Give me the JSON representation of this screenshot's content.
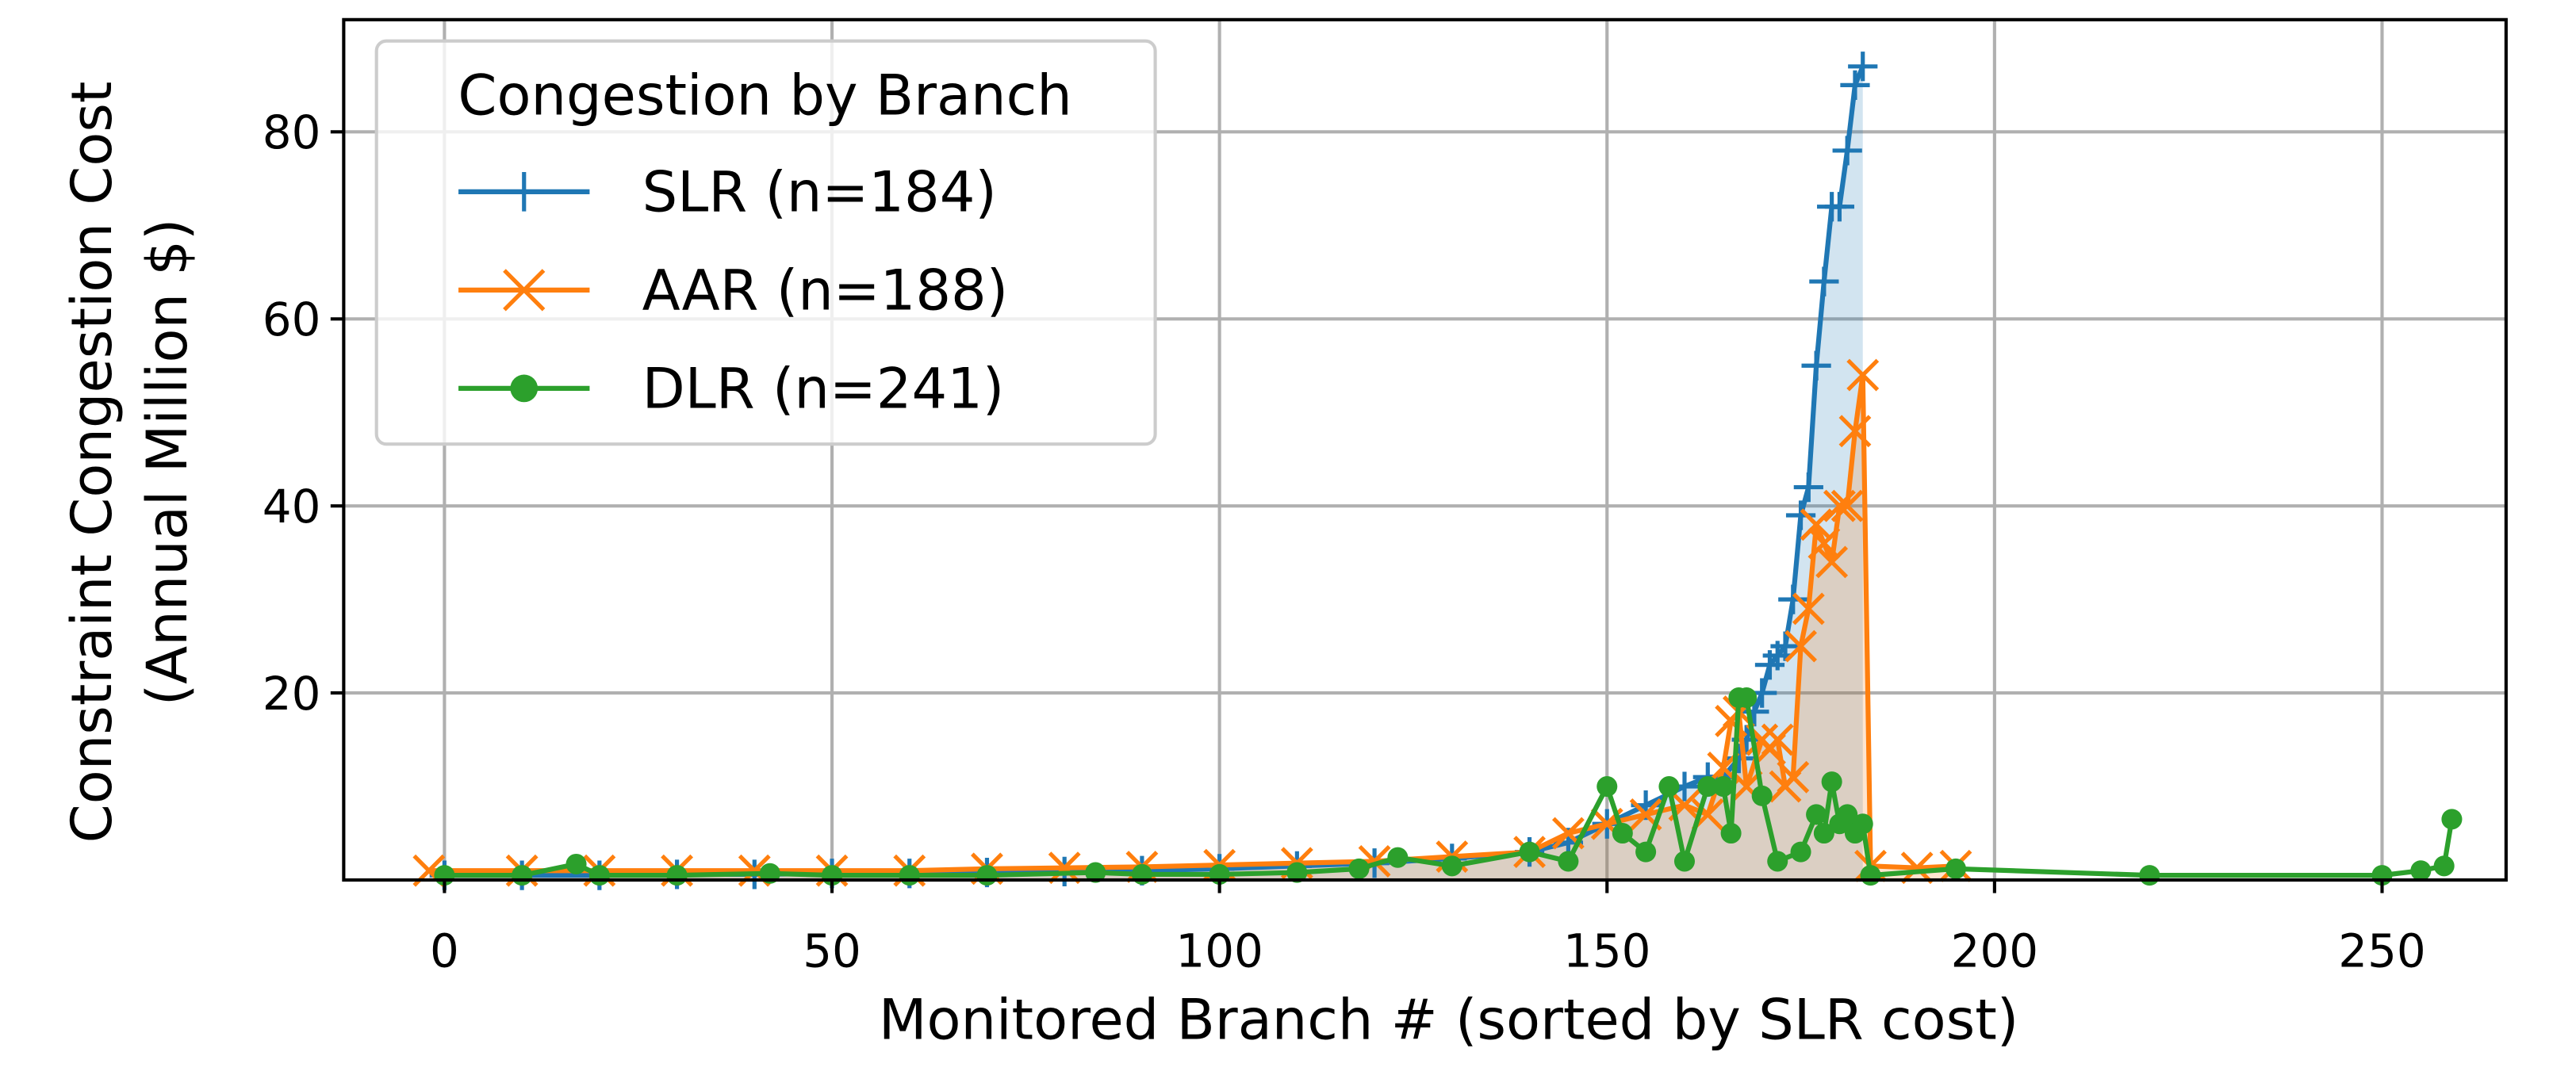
{
  "chart_data": {
    "type": "line",
    "xlabel": "Monitored Branch # (sorted by SLR cost)",
    "ylabel": [
      "Constraint Congestion Cost",
      "(Annual Million $)"
    ],
    "legend_title": "Congestion by Branch",
    "legend_position": "upper left",
    "grid": true,
    "xlim": [
      -13,
      266
    ],
    "ylim": [
      0,
      92
    ],
    "xticks": [
      0,
      50,
      100,
      150,
      200,
      250
    ],
    "yticks": [
      20,
      40,
      60,
      80
    ],
    "series": [
      {
        "name": "SLR (n=184)",
        "color": "#1f77b4",
        "marker": "plus",
        "fill": true,
        "x": [
          0,
          10,
          20,
          30,
          40,
          50,
          60,
          70,
          80,
          90,
          100,
          110,
          120,
          130,
          140,
          145,
          150,
          155,
          160,
          163,
          165,
          167,
          168,
          169,
          170,
          171,
          172,
          173,
          174,
          175,
          176,
          177,
          178,
          179,
          180,
          181,
          182,
          183
        ],
        "values": [
          0.5,
          0.5,
          0.5,
          0.6,
          0.6,
          0.7,
          0.7,
          0.8,
          0.9,
          1.0,
          1.2,
          1.5,
          1.8,
          2.3,
          3.0,
          4,
          6,
          8,
          10,
          11,
          11,
          13,
          15,
          18,
          20,
          23,
          24,
          25,
          30,
          39,
          42,
          55,
          64,
          72,
          72,
          78,
          85,
          87
        ]
      },
      {
        "name": "AAR (n=188)",
        "color": "#ff7f0e",
        "marker": "x",
        "fill": true,
        "x": [
          -2,
          10,
          20,
          30,
          40,
          50,
          60,
          70,
          80,
          90,
          100,
          110,
          120,
          130,
          140,
          145,
          150,
          155,
          160,
          163,
          165,
          166,
          167,
          168,
          170,
          171,
          172,
          173,
          174,
          175,
          176,
          177,
          178,
          179,
          180,
          181,
          182,
          183,
          184,
          190,
          195
        ],
        "values": [
          1,
          1,
          1,
          1,
          1,
          1,
          1,
          1.2,
          1.3,
          1.4,
          1.6,
          1.8,
          2,
          2.5,
          3,
          5,
          6,
          7,
          8,
          7,
          12,
          17,
          18,
          10,
          15,
          14,
          15,
          10,
          11,
          25,
          29,
          38,
          36,
          34,
          40,
          40,
          48,
          54,
          1.5,
          1.3,
          1.5
        ]
      },
      {
        "name": "DLR (n=241)",
        "color": "#2ca02c",
        "marker": "dot",
        "fill": false,
        "x": [
          0,
          10,
          17,
          20,
          30,
          42,
          50,
          60,
          70,
          84,
          90,
          100,
          110,
          118,
          123,
          130,
          140,
          145,
          150,
          152,
          155,
          158,
          160,
          163,
          165,
          166,
          167,
          168,
          170,
          172,
          175,
          177,
          178,
          179,
          180,
          181,
          182,
          183,
          184,
          195,
          220,
          250,
          255,
          258,
          259
        ],
        "values": [
          0.5,
          0.5,
          1.7,
          0.5,
          0.5,
          0.7,
          0.5,
          0.5,
          0.5,
          0.8,
          0.6,
          0.6,
          0.8,
          1.2,
          2.4,
          1.5,
          3,
          2,
          10,
          5,
          3,
          10,
          2,
          10,
          10,
          5,
          19.5,
          19.5,
          9,
          2,
          3,
          7,
          5,
          10.5,
          6,
          7,
          5,
          6,
          0.5,
          1.2,
          0.5,
          0.5,
          1,
          1.5,
          6.5
        ]
      }
    ]
  }
}
